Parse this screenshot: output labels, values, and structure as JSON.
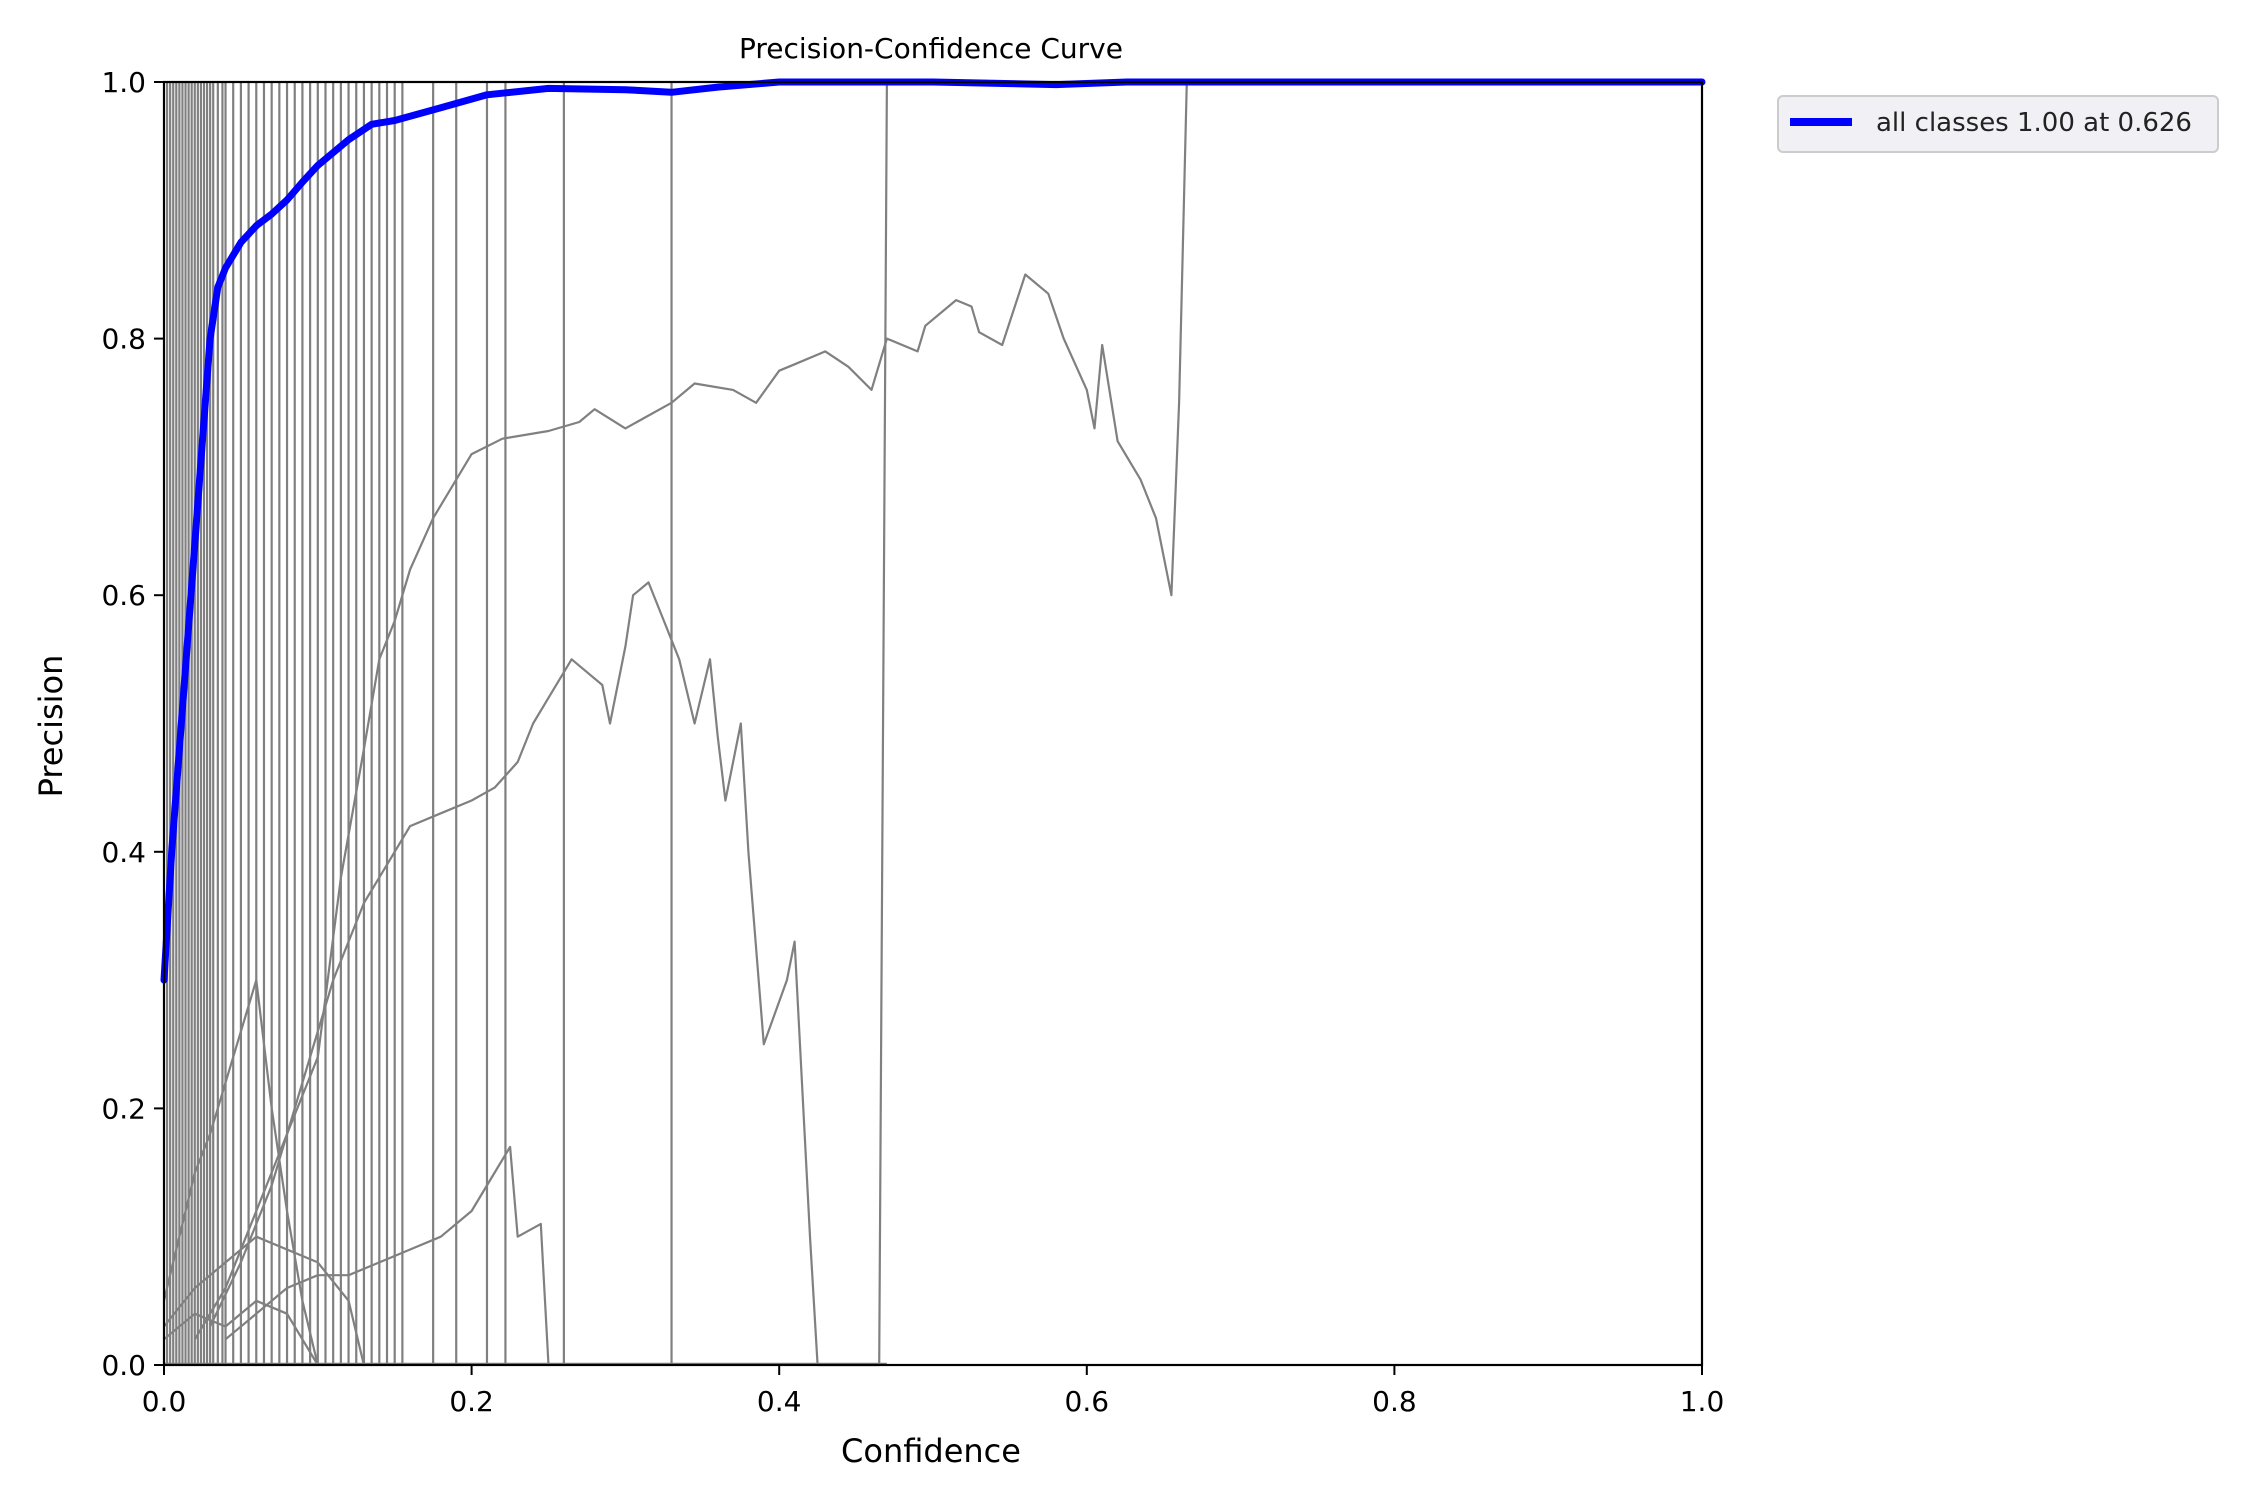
{
  "chart_data": {
    "type": "line",
    "title": "Precision-Confidence Curve",
    "xlabel": "Confidence",
    "ylabel": "Precision",
    "xlim": [
      0,
      1
    ],
    "ylim": [
      0,
      1
    ],
    "x_ticks": [
      "0.0",
      "0.2",
      "0.4",
      "0.6",
      "0.8",
      "1.0"
    ],
    "y_ticks": [
      "0.0",
      "0.2",
      "0.4",
      "0.6",
      "0.8",
      "1.0"
    ],
    "grid": false,
    "legend_position": "outside-top-right",
    "legend": [
      "all classes 1.00 at 0.626"
    ],
    "colors": {
      "main": "#0000ff",
      "class_curves": "#808080"
    },
    "series": [
      {
        "name": "all classes 1.00 at 0.626",
        "color": "#0000ff",
        "points": [
          [
            0.0,
            0.3
          ],
          [
            0.005,
            0.4
          ],
          [
            0.01,
            0.48
          ],
          [
            0.015,
            0.56
          ],
          [
            0.02,
            0.64
          ],
          [
            0.025,
            0.72
          ],
          [
            0.03,
            0.8
          ],
          [
            0.035,
            0.84
          ],
          [
            0.04,
            0.855
          ],
          [
            0.05,
            0.875
          ],
          [
            0.06,
            0.888
          ],
          [
            0.07,
            0.897
          ],
          [
            0.08,
            0.908
          ],
          [
            0.09,
            0.922
          ],
          [
            0.1,
            0.935
          ],
          [
            0.12,
            0.955
          ],
          [
            0.135,
            0.967
          ],
          [
            0.15,
            0.97
          ],
          [
            0.18,
            0.98
          ],
          [
            0.21,
            0.99
          ],
          [
            0.25,
            0.995
          ],
          [
            0.3,
            0.994
          ],
          [
            0.33,
            0.992
          ],
          [
            0.36,
            0.996
          ],
          [
            0.4,
            1.0
          ],
          [
            0.5,
            1.0
          ],
          [
            0.58,
            0.998
          ],
          [
            0.626,
            1.0
          ],
          [
            1.0,
            1.0
          ]
        ]
      },
      {
        "color": "#808080",
        "points": [
          [
            0.02,
            0.02
          ],
          [
            0.04,
            0.06
          ],
          [
            0.06,
            0.12
          ],
          [
            0.08,
            0.18
          ],
          [
            0.1,
            0.24
          ],
          [
            0.115,
            0.38
          ],
          [
            0.13,
            0.48
          ],
          [
            0.14,
            0.55
          ],
          [
            0.15,
            0.58
          ],
          [
            0.16,
            0.62
          ],
          [
            0.175,
            0.66
          ],
          [
            0.19,
            0.69
          ],
          [
            0.2,
            0.71
          ],
          [
            0.22,
            0.722
          ],
          [
            0.25,
            0.728
          ],
          [
            0.27,
            0.735
          ],
          [
            0.28,
            0.745
          ],
          [
            0.3,
            0.73
          ],
          [
            0.33,
            0.75
          ],
          [
            0.345,
            0.765
          ],
          [
            0.37,
            0.76
          ],
          [
            0.385,
            0.75
          ],
          [
            0.4,
            0.775
          ],
          [
            0.41,
            0.78
          ],
          [
            0.43,
            0.79
          ],
          [
            0.445,
            0.778
          ],
          [
            0.46,
            0.76
          ],
          [
            0.47,
            0.8
          ],
          [
            0.49,
            0.79
          ],
          [
            0.495,
            0.81
          ],
          [
            0.515,
            0.83
          ],
          [
            0.525,
            0.825
          ],
          [
            0.53,
            0.805
          ],
          [
            0.545,
            0.795
          ],
          [
            0.56,
            0.85
          ],
          [
            0.575,
            0.835
          ],
          [
            0.585,
            0.8
          ],
          [
            0.6,
            0.76
          ],
          [
            0.605,
            0.73
          ],
          [
            0.61,
            0.795
          ],
          [
            0.62,
            0.72
          ],
          [
            0.635,
            0.69
          ],
          [
            0.645,
            0.66
          ],
          [
            0.655,
            0.6
          ],
          [
            0.66,
            0.75
          ],
          [
            0.665,
            1.0
          ]
        ]
      },
      {
        "color": "#808080",
        "points": [
          [
            0.03,
            0.03
          ],
          [
            0.05,
            0.08
          ],
          [
            0.07,
            0.14
          ],
          [
            0.09,
            0.22
          ],
          [
            0.11,
            0.3
          ],
          [
            0.13,
            0.36
          ],
          [
            0.15,
            0.4
          ],
          [
            0.16,
            0.42
          ],
          [
            0.18,
            0.43
          ],
          [
            0.2,
            0.44
          ],
          [
            0.215,
            0.45
          ],
          [
            0.23,
            0.47
          ],
          [
            0.24,
            0.5
          ],
          [
            0.25,
            0.52
          ],
          [
            0.26,
            0.54
          ],
          [
            0.265,
            0.55
          ],
          [
            0.275,
            0.54
          ],
          [
            0.285,
            0.53
          ],
          [
            0.29,
            0.5
          ],
          [
            0.3,
            0.56
          ],
          [
            0.305,
            0.6
          ],
          [
            0.315,
            0.61
          ],
          [
            0.325,
            0.58
          ],
          [
            0.335,
            0.55
          ],
          [
            0.345,
            0.5
          ],
          [
            0.355,
            0.55
          ],
          [
            0.36,
            0.49
          ],
          [
            0.365,
            0.44
          ],
          [
            0.375,
            0.5
          ],
          [
            0.38,
            0.4
          ],
          [
            0.39,
            0.25
          ],
          [
            0.405,
            0.3
          ],
          [
            0.41,
            0.33
          ],
          [
            0.42,
            0.1
          ],
          [
            0.425,
            0.0
          ],
          [
            0.465,
            0.0
          ],
          [
            0.47,
            1.0
          ]
        ]
      },
      {
        "color": "#808080",
        "points": [
          [
            0.04,
            0.02
          ],
          [
            0.06,
            0.04
          ],
          [
            0.08,
            0.06
          ],
          [
            0.1,
            0.07
          ],
          [
            0.12,
            0.07
          ],
          [
            0.14,
            0.08
          ],
          [
            0.16,
            0.09
          ],
          [
            0.18,
            0.1
          ],
          [
            0.2,
            0.12
          ],
          [
            0.215,
            0.15
          ],
          [
            0.225,
            0.17
          ],
          [
            0.23,
            0.1
          ],
          [
            0.245,
            0.11
          ],
          [
            0.25,
            0.0
          ]
        ]
      },
      {
        "color": "#808080",
        "points": [
          [
            0.0,
            0.05
          ],
          [
            0.01,
            0.1
          ],
          [
            0.02,
            0.15
          ],
          [
            0.03,
            0.18
          ],
          [
            0.04,
            0.22
          ],
          [
            0.05,
            0.26
          ],
          [
            0.06,
            0.3
          ],
          [
            0.07,
            0.2
          ],
          [
            0.08,
            0.12
          ],
          [
            0.09,
            0.05
          ],
          [
            0.1,
            0.0
          ]
        ]
      },
      {
        "color": "#808080",
        "points": [
          [
            0.0,
            0.03
          ],
          [
            0.02,
            0.06
          ],
          [
            0.04,
            0.08
          ],
          [
            0.06,
            0.1
          ],
          [
            0.08,
            0.09
          ],
          [
            0.1,
            0.08
          ],
          [
            0.12,
            0.05
          ],
          [
            0.13,
            0.0
          ]
        ]
      },
      {
        "color": "#808080",
        "points": [
          [
            0.0,
            0.02
          ],
          [
            0.02,
            0.04
          ],
          [
            0.04,
            0.03
          ],
          [
            0.06,
            0.05
          ],
          [
            0.08,
            0.04
          ],
          [
            0.09,
            0.02
          ],
          [
            0.1,
            0.0
          ]
        ]
      }
    ],
    "vertical_drops": [
      0.002,
      0.004,
      0.006,
      0.008,
      0.01,
      0.012,
      0.014,
      0.016,
      0.018,
      0.02,
      0.022,
      0.024,
      0.026,
      0.028,
      0.03,
      0.032,
      0.035,
      0.038,
      0.04,
      0.045,
      0.05,
      0.055,
      0.06,
      0.065,
      0.07,
      0.075,
      0.08,
      0.085,
      0.09,
      0.095,
      0.1,
      0.105,
      0.11,
      0.115,
      0.12,
      0.125,
      0.13,
      0.135,
      0.14,
      0.145,
      0.15,
      0.155,
      0.175,
      0.19,
      0.21,
      0.222,
      0.26,
      0.33
    ]
  }
}
